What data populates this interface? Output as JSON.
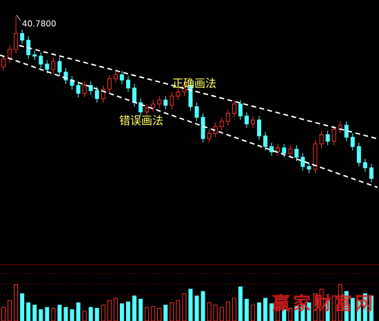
{
  "chart_data": {
    "type": "candlestick",
    "max_label": "40.7800",
    "annotations": [
      {
        "text": "正确画法"
      },
      {
        "text": "错误画法"
      }
    ],
    "watermark": "赢家财富网",
    "up_color": "#ff3232",
    "down_color": "#54ffff",
    "ylim": [
      27,
      41.5
    ],
    "volume_lim": [
      0,
      100
    ],
    "open": [
      37.0,
      37.6,
      38.3,
      39.5,
      39.0,
      37.9,
      37.8,
      37.2,
      36.8,
      37.4,
      36.6,
      36.0,
      35.6,
      35.0,
      35.6,
      35.2,
      34.6,
      35.3,
      36.1,
      36.4,
      36.0,
      35.4,
      34.3,
      33.6,
      33.9,
      34.2,
      34.5,
      34.1,
      34.8,
      35.1,
      35.6,
      34.0,
      33.2,
      31.6,
      32.0,
      32.5,
      32.9,
      33.5,
      34.2,
      33.3,
      32.7,
      33.0,
      31.8,
      31.0,
      30.6,
      30.9,
      30.5,
      30.8,
      30.2,
      29.5,
      29.3,
      31.2,
      31.9,
      31.4,
      32.3,
      32.6,
      31.7,
      31.0,
      29.8,
      29.4
    ],
    "high": [
      37.9,
      38.6,
      40.78,
      39.8,
      39.3,
      38.2,
      38.1,
      37.5,
      37.7,
      37.7,
      36.9,
      36.3,
      35.9,
      35.9,
      35.9,
      35.5,
      35.6,
      36.4,
      36.7,
      36.7,
      36.3,
      35.7,
      34.6,
      34.2,
      34.5,
      34.8,
      34.8,
      35.1,
      35.4,
      35.9,
      35.9,
      34.3,
      33.5,
      32.3,
      32.8,
      33.2,
      33.8,
      34.5,
      34.5,
      33.6,
      33.3,
      33.3,
      32.1,
      31.3,
      31.2,
      31.2,
      31.1,
      31.1,
      30.5,
      29.8,
      31.5,
      32.2,
      32.2,
      32.6,
      32.9,
      32.9,
      32.0,
      31.3,
      30.1,
      29.7
    ],
    "low": [
      36.7,
      37.3,
      38.0,
      38.7,
      37.6,
      37.5,
      36.9,
      36.5,
      36.5,
      36.3,
      35.7,
      35.3,
      34.7,
      34.7,
      34.9,
      34.3,
      34.3,
      35.0,
      35.8,
      35.7,
      35.1,
      34.0,
      33.3,
      33.3,
      33.6,
      33.9,
      33.8,
      33.8,
      34.5,
      34.8,
      33.7,
      32.9,
      31.3,
      31.3,
      31.7,
      32.2,
      32.6,
      33.2,
      33.0,
      32.4,
      32.4,
      31.5,
      30.7,
      30.3,
      30.3,
      30.2,
      30.2,
      29.9,
      29.2,
      29.0,
      29.0,
      30.9,
      31.1,
      31.1,
      32.0,
      31.4,
      30.7,
      29.5,
      29.1,
      28.3
    ],
    "close": [
      37.6,
      38.3,
      39.5,
      39.0,
      37.9,
      37.8,
      37.2,
      36.8,
      37.4,
      36.6,
      36.0,
      35.6,
      35.0,
      35.6,
      35.2,
      34.6,
      35.3,
      36.1,
      36.4,
      36.0,
      35.4,
      34.3,
      33.6,
      33.9,
      34.2,
      34.5,
      34.1,
      34.8,
      35.1,
      35.6,
      34.0,
      33.2,
      31.6,
      32.0,
      32.5,
      32.9,
      33.5,
      34.2,
      33.3,
      32.7,
      33.0,
      31.8,
      31.0,
      30.6,
      30.9,
      30.5,
      30.8,
      30.2,
      29.5,
      29.3,
      31.2,
      31.9,
      31.4,
      32.3,
      32.6,
      31.7,
      31.0,
      29.8,
      29.4,
      28.6
    ],
    "volume": [
      30,
      45,
      80,
      60,
      40,
      35,
      25,
      30,
      28,
      35,
      30,
      25,
      40,
      22,
      30,
      28,
      35,
      45,
      50,
      38,
      42,
      55,
      48,
      30,
      32,
      28,
      35,
      40,
      45,
      60,
      70,
      55,
      65,
      40,
      35,
      30,
      42,
      50,
      75,
      48,
      35,
      40,
      50,
      38,
      30,
      25,
      28,
      32,
      35,
      40,
      60,
      70,
      45,
      55,
      80,
      65,
      50,
      45,
      60,
      55
    ]
  }
}
